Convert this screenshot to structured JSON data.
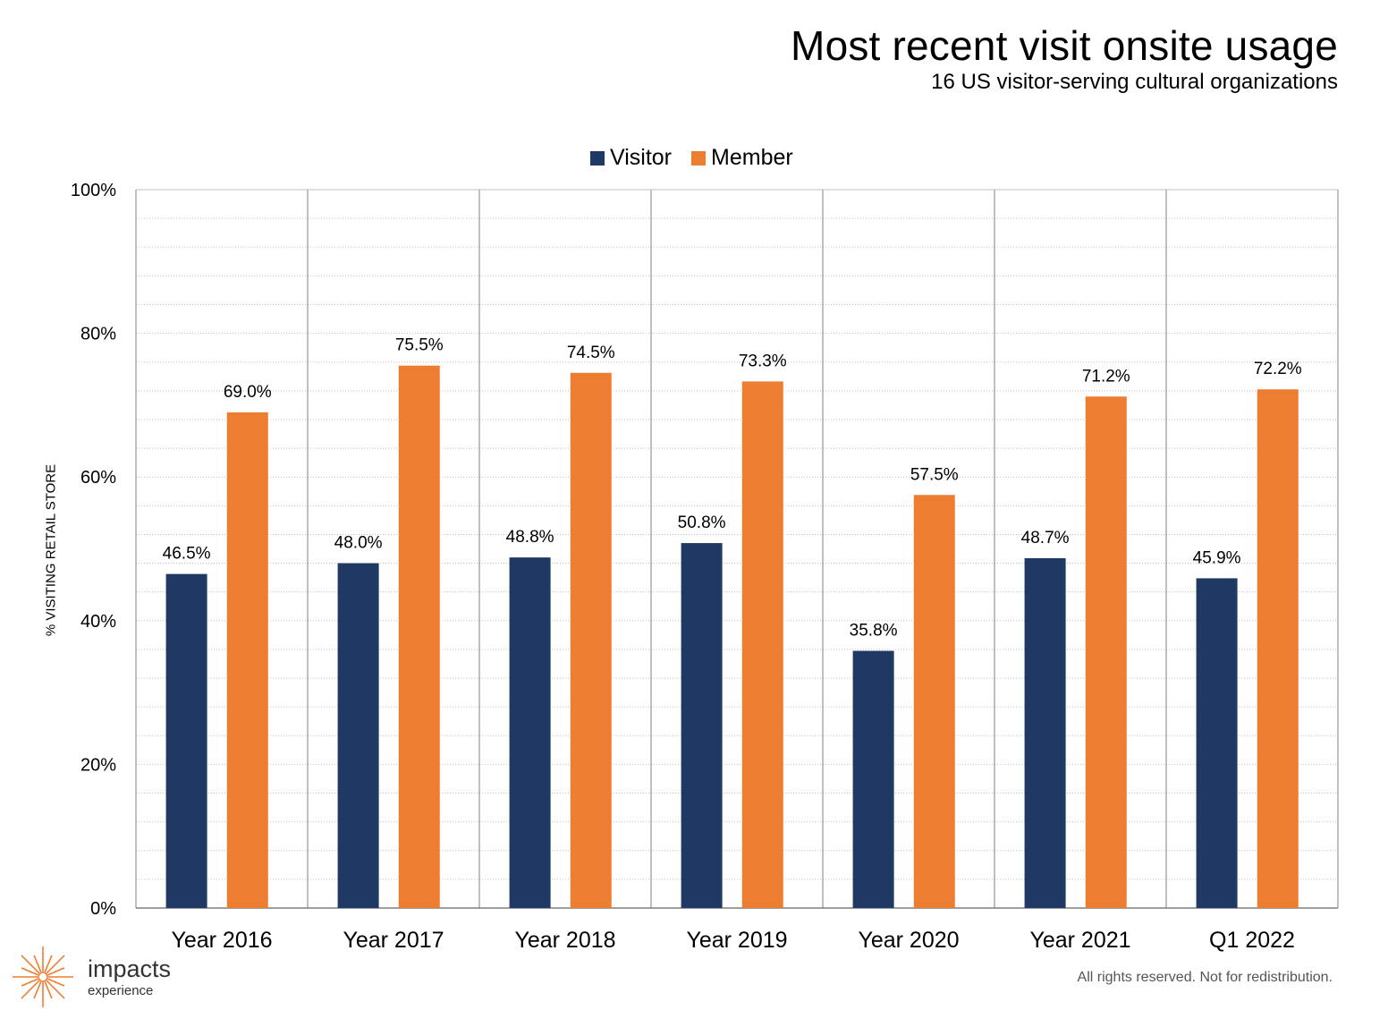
{
  "header": {
    "title": "Most recent visit onsite usage",
    "subtitle": "16 US visitor-serving cultural organizations"
  },
  "footer": {
    "logo_name": "impacts",
    "logo_sub": "experience",
    "logo_icon": "starburst-icon",
    "rights": "All rights reserved. Not for redistribution."
  },
  "colors": {
    "visitor": "#1f3864",
    "member": "#ed7d31",
    "gridline": "#bfbfbf",
    "axis": "#7f7f7f",
    "logo_accent": "#ed7d31"
  },
  "chart_data": {
    "type": "bar",
    "title": "Most recent visit onsite usage",
    "subtitle": "16 US visitor-serving cultural organizations",
    "xlabel": "",
    "ylabel": "% VISITING RETAIL STORE",
    "categories": [
      "Year 2016",
      "Year 2017",
      "Year 2018",
      "Year 2019",
      "Year 2020",
      "Year 2021",
      "Q1 2022"
    ],
    "series": [
      {
        "name": "Visitor",
        "values": [
          46.5,
          48.0,
          48.8,
          50.8,
          35.8,
          48.7,
          45.9
        ],
        "labels": [
          "46.5%",
          "48.0%",
          "48.8%",
          "50.8%",
          "35.8%",
          "48.7%",
          "45.9%"
        ]
      },
      {
        "name": "Member",
        "values": [
          69.0,
          75.5,
          74.5,
          73.3,
          57.5,
          71.2,
          72.2
        ],
        "labels": [
          "69.0%",
          "75.5%",
          "74.5%",
          "73.3%",
          "57.5%",
          "71.2%",
          "72.2%"
        ]
      }
    ],
    "ylim": [
      0,
      100
    ],
    "yticks": [
      0,
      20,
      40,
      60,
      80,
      100
    ],
    "ytick_labels": [
      "0%",
      "20%",
      "40%",
      "60%",
      "80%",
      "100%"
    ],
    "grid": true,
    "legend_position": "top-center"
  }
}
